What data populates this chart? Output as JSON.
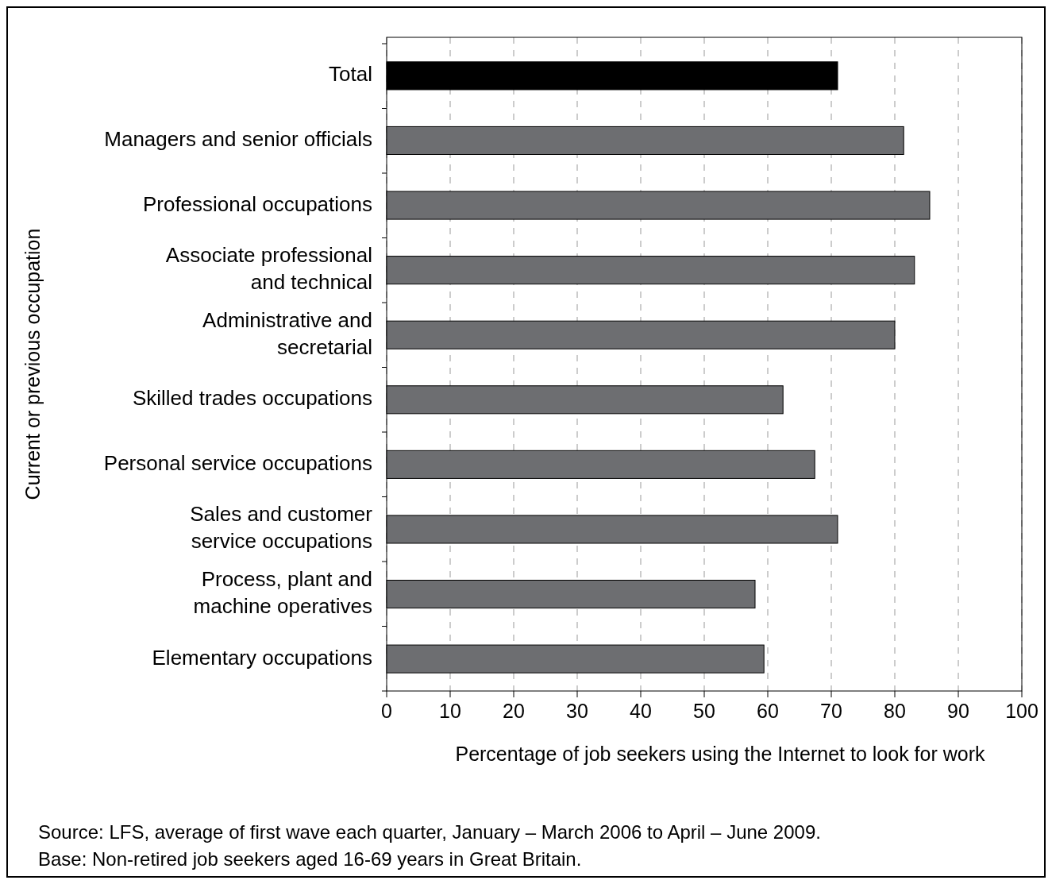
{
  "chart_data": {
    "type": "bar",
    "orientation": "horizontal",
    "xlabel": "Percentage of job seekers using the Internet to look for work",
    "ylabel": "Current or previous occupation",
    "categories": [
      "Total",
      "Managers and senior officials",
      "Professional occupations",
      "Associate professional\nand technical",
      "Administrative and\nsecretarial",
      "Skilled trades occupations",
      "Personal service occupations",
      "Sales and customer\nservice occupations",
      "Process, plant and\nmachine operatives",
      "Elementary occupations"
    ],
    "values": [
      71.0,
      81.4,
      85.5,
      83.1,
      80.0,
      62.4,
      67.4,
      71.0,
      58.0,
      59.4
    ],
    "colors": [
      "#000000",
      "#6d6e71",
      "#6d6e71",
      "#6d6e71",
      "#6d6e71",
      "#6d6e71",
      "#6d6e71",
      "#6d6e71",
      "#6d6e71",
      "#6d6e71"
    ],
    "xlim": [
      0,
      100
    ],
    "xticks": [
      0,
      10,
      20,
      30,
      40,
      50,
      60,
      70,
      80,
      90,
      100
    ],
    "grid": "x",
    "annotations": [
      "Source: LFS, average of first wave each quarter, January – March 2006 to April – June 2009.",
      "Base: Non-retired job seekers aged 16-69 years in Great Britain."
    ]
  }
}
